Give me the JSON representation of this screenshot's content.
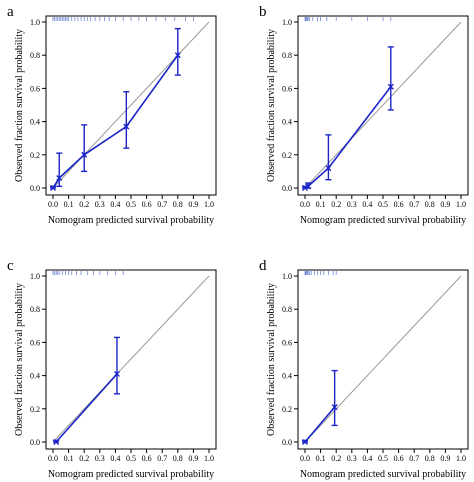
{
  "colors": {
    "calibration": "#1a24c8",
    "reference": "#9a9a9a",
    "rug": "#6f86d8"
  },
  "chart_data": [
    {
      "type": "line",
      "panel_label": "a",
      "xlabel": "Nomogram predicted survival probability",
      "ylabel": "Observed fraction survival probability",
      "xlim": [
        0,
        1
      ],
      "ylim": [
        0,
        1
      ],
      "xticks": [
        "0.0",
        "0.1",
        "0.2",
        "0.3",
        "0.4",
        "0.5",
        "0.6",
        "0.7",
        "0.8",
        "0.9",
        "1.0"
      ],
      "yticks": [
        "0.0",
        "0.2",
        "0.4",
        "0.6",
        "0.8",
        "1.0"
      ],
      "reference_line": "diagonal",
      "series": [
        {
          "x": [
            0.0,
            0.04,
            0.2,
            0.47,
            0.8
          ],
          "y": [
            0.0,
            0.06,
            0.2,
            0.37,
            0.8
          ],
          "lower": [
            0.0,
            0.01,
            0.1,
            0.24,
            0.68
          ],
          "upper": [
            0.01,
            0.21,
            0.38,
            0.58,
            0.96
          ]
        }
      ],
      "rug_top": [
        0.0,
        0.01,
        0.02,
        0.03,
        0.04,
        0.05,
        0.06,
        0.07,
        0.08,
        0.09,
        0.1,
        0.12,
        0.14,
        0.16,
        0.18,
        0.2,
        0.22,
        0.24,
        0.27,
        0.3,
        0.33,
        0.36,
        0.4,
        0.45,
        0.5,
        0.55,
        0.6,
        0.66,
        0.72,
        0.78,
        0.85,
        0.9
      ]
    },
    {
      "type": "line",
      "panel_label": "b",
      "xlabel": "Nomogram predicted survival probability",
      "ylabel": "Observed fraction survival probability",
      "xlim": [
        0,
        1
      ],
      "ylim": [
        0,
        1
      ],
      "xticks": [
        "0.0",
        "0.1",
        "0.2",
        "0.3",
        "0.4",
        "0.5",
        "0.6",
        "0.7",
        "0.8",
        "0.9",
        "1.0"
      ],
      "yticks": [
        "0.0",
        "0.2",
        "0.4",
        "0.6",
        "0.8",
        "1.0"
      ],
      "reference_line": "diagonal",
      "series": [
        {
          "x": [
            0.0,
            0.02,
            0.15,
            0.55
          ],
          "y": [
            0.0,
            0.01,
            0.12,
            0.61
          ],
          "lower": [
            0.0,
            0.0,
            0.05,
            0.47
          ],
          "upper": [
            0.01,
            0.03,
            0.32,
            0.85
          ]
        }
      ],
      "rug_top": [
        0.0,
        0.005,
        0.01,
        0.015,
        0.02,
        0.03,
        0.05,
        0.08,
        0.1,
        0.14,
        0.2,
        0.3,
        0.4,
        0.5,
        0.55
      ]
    },
    {
      "type": "line",
      "panel_label": "c",
      "xlabel": "Nomogram predicted survival probability",
      "ylabel": "Observed fraction survival probability",
      "xlim": [
        0,
        1
      ],
      "ylim": [
        0,
        1
      ],
      "xticks": [
        "0.0",
        "0.1",
        "0.2",
        "0.3",
        "0.4",
        "0.5",
        "0.6",
        "0.7",
        "0.8",
        "0.9",
        "1.0"
      ],
      "yticks": [
        "0.0",
        "0.2",
        "0.4",
        "0.6",
        "0.8",
        "1.0"
      ],
      "reference_line": "diagonal",
      "series": [
        {
          "x": [
            0.02,
            0.41
          ],
          "y": [
            0.0,
            0.41
          ],
          "lower": [
            0.0,
            0.29
          ],
          "upper": [
            0.01,
            0.63
          ]
        }
      ],
      "rug_top": [
        0.0,
        0.01,
        0.02,
        0.03,
        0.04,
        0.06,
        0.08,
        0.1,
        0.12,
        0.15,
        0.18,
        0.22,
        0.26,
        0.3,
        0.35,
        0.4,
        0.45
      ]
    },
    {
      "type": "line",
      "panel_label": "d",
      "xlabel": "Nomogram predicted survival probability",
      "ylabel": "Observed fraction survival probability",
      "xlim": [
        0,
        1
      ],
      "ylim": [
        0,
        1
      ],
      "xticks": [
        "0.0",
        "0.1",
        "0.2",
        "0.3",
        "0.4",
        "0.5",
        "0.6",
        "0.7",
        "0.8",
        "0.9",
        "1.0"
      ],
      "yticks": [
        "0.0",
        "0.2",
        "0.4",
        "0.6",
        "0.8",
        "1.0"
      ],
      "reference_line": "diagonal",
      "series": [
        {
          "x": [
            0.0,
            0.19
          ],
          "y": [
            0.0,
            0.21
          ],
          "lower": [
            0.0,
            0.1
          ],
          "upper": [
            0.01,
            0.43
          ]
        }
      ],
      "rug_top": [
        0.0,
        0.005,
        0.01,
        0.015,
        0.02,
        0.03,
        0.04,
        0.06,
        0.08,
        0.1,
        0.12,
        0.15,
        0.18,
        0.2
      ]
    }
  ]
}
